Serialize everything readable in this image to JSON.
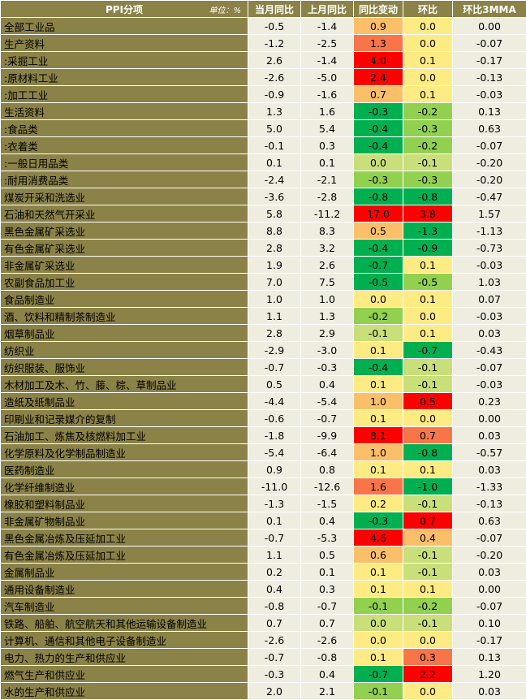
{
  "header": {
    "title": "PPI分项",
    "unit": "单位：%",
    "columns": [
      "当月同比",
      "上月同比",
      "同比变动",
      "环比",
      "环比3MMA"
    ]
  },
  "colors": {
    "name_bg": "#8b8248",
    "num_bg": "#efede0",
    "scale": [
      "#00b050",
      "#92d050",
      "#c8df7a",
      "#ffeb84",
      "#fbbf6a",
      "#f8754a",
      "#ff0000"
    ]
  },
  "rows": [
    {
      "name": "全部工业品",
      "cur": "-0.5",
      "prev": "-1.4",
      "chg": "0.9",
      "chg_color": "#fbbf6a",
      "mom": "0.0",
      "mom_color": "#ffeb84",
      "mma": "0.00",
      "sep": false
    },
    {
      "name": "生产资料",
      "cur": "-1.2",
      "prev": "-2.5",
      "chg": "1.3",
      "chg_color": "#f8754a",
      "mom": "0.0",
      "mom_color": "#ffeb84",
      "mma": "-0.07",
      "sep": true
    },
    {
      "name": ":采掘工业",
      "cur": "2.6",
      "prev": "-1.4",
      "chg": "4.0",
      "chg_color": "#ff0000",
      "mom": "0.1",
      "mom_color": "#ffeb84",
      "mma": "-0.17",
      "sep": false
    },
    {
      "name": ":原材料工业",
      "cur": "-2.6",
      "prev": "-5.0",
      "chg": "2.4",
      "chg_color": "#ff0000",
      "mom": "0.0",
      "mom_color": "#ffeb84",
      "mma": "-0.13",
      "sep": false
    },
    {
      "name": ":加工工业",
      "cur": "-0.9",
      "prev": "-1.6",
      "chg": "0.7",
      "chg_color": "#fbbf6a",
      "mom": "0.1",
      "mom_color": "#ffeb84",
      "mma": "-0.03",
      "sep": false
    },
    {
      "name": "生活资料",
      "cur": "1.3",
      "prev": "1.6",
      "chg": "-0.3",
      "chg_color": "#00b050",
      "mom": "-0.2",
      "mom_color": "#92d050",
      "mma": "0.13",
      "sep": true
    },
    {
      "name": ":食品类",
      "cur": "5.0",
      "prev": "5.4",
      "chg": "-0.4",
      "chg_color": "#00b050",
      "mom": "-0.3",
      "mom_color": "#92d050",
      "mma": "0.63",
      "sep": false
    },
    {
      "name": ":衣着类",
      "cur": "-0.1",
      "prev": "0.3",
      "chg": "-0.4",
      "chg_color": "#00b050",
      "mom": "-0.2",
      "mom_color": "#92d050",
      "mma": "-0.07",
      "sep": false
    },
    {
      "name": ":一般日用品类",
      "cur": "0.1",
      "prev": "0.1",
      "chg": "0.0",
      "chg_color": "#c8df7a",
      "mom": "-0.1",
      "mom_color": "#c8df7a",
      "mma": "-0.20",
      "sep": false
    },
    {
      "name": ":耐用消费品类",
      "cur": "-2.4",
      "prev": "-2.1",
      "chg": "-0.3",
      "chg_color": "#92d050",
      "mom": "-0.3",
      "mom_color": "#92d050",
      "mma": "-0.20",
      "sep": false
    },
    {
      "name": "煤炭开采和洗选业",
      "cur": "-3.6",
      "prev": "-2.8",
      "chg": "-0.8",
      "chg_color": "#00b050",
      "mom": "-0.8",
      "mom_color": "#00b050",
      "mma": "-0.47",
      "sep": true
    },
    {
      "name": "石油和天然气开采业",
      "cur": "5.8",
      "prev": "-11.2",
      "chg": "17.0",
      "chg_color": "#ff0000",
      "mom": "3.8",
      "mom_color": "#ff0000",
      "mma": "1.57",
      "sep": false
    },
    {
      "name": "黑色金属矿采选业",
      "cur": "8.8",
      "prev": "8.3",
      "chg": "0.5",
      "chg_color": "#fbbf6a",
      "mom": "-1.3",
      "mom_color": "#00b050",
      "mma": "-1.13",
      "sep": false
    },
    {
      "name": "有色金属矿采选业",
      "cur": "2.8",
      "prev": "3.2",
      "chg": "-0.4",
      "chg_color": "#00b050",
      "mom": "-0.9",
      "mom_color": "#00b050",
      "mma": "-0.73",
      "sep": false
    },
    {
      "name": "非金属矿采选业",
      "cur": "1.9",
      "prev": "2.6",
      "chg": "-0.7",
      "chg_color": "#00b050",
      "mom": "0.1",
      "mom_color": "#ffeb84",
      "mma": "-0.03",
      "sep": false
    },
    {
      "name": "农副食品加工业",
      "cur": "7.0",
      "prev": "7.5",
      "chg": "-0.5",
      "chg_color": "#00b050",
      "mom": "-0.5",
      "mom_color": "#92d050",
      "mma": "1.03",
      "sep": false
    },
    {
      "name": "食品制造业",
      "cur": "1.0",
      "prev": "1.0",
      "chg": "0.0",
      "chg_color": "#ffeb84",
      "mom": "0.1",
      "mom_color": "#ffeb84",
      "mma": "0.07",
      "sep": false
    },
    {
      "name": "酒、饮料和精制茶制造业",
      "cur": "1.1",
      "prev": "1.3",
      "chg": "-0.2",
      "chg_color": "#92d050",
      "mom": "0.0",
      "mom_color": "#ffeb84",
      "mma": "-0.03",
      "sep": false
    },
    {
      "name": "烟草制品业",
      "cur": "2.8",
      "prev": "2.9",
      "chg": "-0.1",
      "chg_color": "#c8df7a",
      "mom": "0.1",
      "mom_color": "#ffeb84",
      "mma": "0.03",
      "sep": false
    },
    {
      "name": "纺织业",
      "cur": "-2.9",
      "prev": "-3.0",
      "chg": "0.1",
      "chg_color": "#ffeb84",
      "mom": "-0.7",
      "mom_color": "#00b050",
      "mma": "-0.43",
      "sep": false
    },
    {
      "name": "纺织服装、服饰业",
      "cur": "-0.7",
      "prev": "-0.3",
      "chg": "-0.4",
      "chg_color": "#00b050",
      "mom": "-0.1",
      "mom_color": "#c8df7a",
      "mma": "-0.07",
      "sep": false
    },
    {
      "name": "木材加工及木、竹、藤、棕、草制品业",
      "cur": "0.5",
      "prev": "0.4",
      "chg": "0.1",
      "chg_color": "#ffeb84",
      "mom": "-0.1",
      "mom_color": "#c8df7a",
      "mma": "-0.03",
      "sep": false
    },
    {
      "name": "造纸及纸制品业",
      "cur": "-4.4",
      "prev": "-5.4",
      "chg": "1.0",
      "chg_color": "#fbbf6a",
      "mom": "0.5",
      "mom_color": "#ff0000",
      "mma": "0.23",
      "sep": false
    },
    {
      "name": "印刷业和记录媒介的复制",
      "cur": "-0.6",
      "prev": "-0.7",
      "chg": "0.1",
      "chg_color": "#ffeb84",
      "mom": "0.0",
      "mom_color": "#ffeb84",
      "mma": "0.00",
      "sep": false
    },
    {
      "name": "石油加工、炼焦及核燃料加工业",
      "cur": "-1.8",
      "prev": "-9.9",
      "chg": "8.1",
      "chg_color": "#ff0000",
      "mom": "0.7",
      "mom_color": "#f8754a",
      "mma": "0.03",
      "sep": false
    },
    {
      "name": "化学原料及化学制品制造业",
      "cur": "-5.4",
      "prev": "-6.4",
      "chg": "1.0",
      "chg_color": "#fbbf6a",
      "mom": "-0.8",
      "mom_color": "#00b050",
      "mma": "-0.57",
      "sep": false
    },
    {
      "name": "医药制造业",
      "cur": "0.9",
      "prev": "0.8",
      "chg": "0.1",
      "chg_color": "#ffeb84",
      "mom": "0.1",
      "mom_color": "#ffeb84",
      "mma": "0.03",
      "sep": false
    },
    {
      "name": "化学纤维制造业",
      "cur": "-11.0",
      "prev": "-12.6",
      "chg": "1.6",
      "chg_color": "#f8754a",
      "mom": "-1.0",
      "mom_color": "#00b050",
      "mma": "-1.33",
      "sep": false
    },
    {
      "name": "橡胶和塑料制品业",
      "cur": "-1.3",
      "prev": "-1.5",
      "chg": "0.2",
      "chg_color": "#ffeb84",
      "mom": "-0.1",
      "mom_color": "#c8df7a",
      "mma": "-0.13",
      "sep": false
    },
    {
      "name": "非金属矿物制品业",
      "cur": "0.1",
      "prev": "0.4",
      "chg": "-0.3",
      "chg_color": "#00b050",
      "mom": "0.7",
      "mom_color": "#ff0000",
      "mma": "0.63",
      "sep": false
    },
    {
      "name": "黑色金属冶炼及压延加工业",
      "cur": "-0.7",
      "prev": "-5.3",
      "chg": "4.6",
      "chg_color": "#ff0000",
      "mom": "0.4",
      "mom_color": "#fbbf6a",
      "mma": "-0.07",
      "sep": false
    },
    {
      "name": "有色金属冶炼及压延加工业",
      "cur": "1.1",
      "prev": "0.5",
      "chg": "0.6",
      "chg_color": "#fbbf6a",
      "mom": "-0.1",
      "mom_color": "#c8df7a",
      "mma": "-0.20",
      "sep": false
    },
    {
      "name": "金属制品业",
      "cur": "0.2",
      "prev": "0.1",
      "chg": "0.1",
      "chg_color": "#ffeb84",
      "mom": "-0.1",
      "mom_color": "#c8df7a",
      "mma": "0.03",
      "sep": false
    },
    {
      "name": "通用设备制造业",
      "cur": "0.4",
      "prev": "0.3",
      "chg": "0.1",
      "chg_color": "#ffeb84",
      "mom": "0.1",
      "mom_color": "#ffeb84",
      "mma": "0.00",
      "sep": false
    },
    {
      "name": "汽车制造业",
      "cur": "-0.8",
      "prev": "-0.7",
      "chg": "-0.1",
      "chg_color": "#92d050",
      "mom": "-0.2",
      "mom_color": "#92d050",
      "mma": "-0.07",
      "sep": false
    },
    {
      "name": "铁路、船舶、航空航天和其他运输设备制造业",
      "cur": "0.7",
      "prev": "0.7",
      "chg": "0.0",
      "chg_color": "#c8df7a",
      "mom": "-0.1",
      "mom_color": "#c8df7a",
      "mma": "0.10",
      "sep": false
    },
    {
      "name": "计算机、通信和其他电子设备制造业",
      "cur": "-2.6",
      "prev": "-2.6",
      "chg": "0.0",
      "chg_color": "#ffeb84",
      "mom": "0.0",
      "mom_color": "#ffeb84",
      "mma": "-0.17",
      "sep": false
    },
    {
      "name": "电力、热力的生产和供应业",
      "cur": "-0.7",
      "prev": "-0.8",
      "chg": "0.1",
      "chg_color": "#ffeb84",
      "mom": "0.3",
      "mom_color": "#f8754a",
      "mma": "0.13",
      "sep": false
    },
    {
      "name": "燃气生产和供应业",
      "cur": "-0.3",
      "prev": "0.4",
      "chg": "-0.7",
      "chg_color": "#00b050",
      "mom": "2.2",
      "mom_color": "#ff0000",
      "mma": "1.20",
      "sep": false
    },
    {
      "name": "水的生产和供应业",
      "cur": "2.0",
      "prev": "2.1",
      "chg": "-0.1",
      "chg_color": "#92d050",
      "mom": "0.0",
      "mom_color": "#ffeb84",
      "mma": "0.03",
      "sep": false
    }
  ]
}
